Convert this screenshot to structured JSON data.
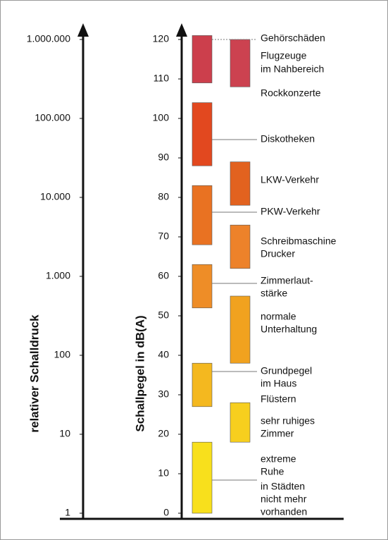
{
  "chart_data": {
    "type": "range-bar",
    "ylabel": "Schallpegel in dB(A)",
    "y2label": "relativer Schalldruck",
    "ylim": [
      0,
      120
    ],
    "yticks": [
      0,
      10,
      20,
      30,
      40,
      50,
      60,
      70,
      80,
      90,
      100,
      110,
      120
    ],
    "y2lim": [
      1,
      1000000
    ],
    "y2scale": "log",
    "y2ticks": [
      {
        "value": 1,
        "label": "1"
      },
      {
        "value": 10,
        "label": "10"
      },
      {
        "value": 100,
        "label": "100"
      },
      {
        "value": 1000,
        "label": "1.000"
      },
      {
        "value": 10000,
        "label": "10.000"
      },
      {
        "value": 100000,
        "label": "100.000"
      },
      {
        "value": 1000000,
        "label": "1.000.000"
      }
    ],
    "bars_left": [
      {
        "low": 109,
        "high": 121,
        "color": "#cc3f4c"
      },
      {
        "low": 88,
        "high": 104,
        "color": "#e2481f"
      },
      {
        "low": 68,
        "high": 83,
        "color": "#e97222"
      },
      {
        "low": 52,
        "high": 63,
        "color": "#ee8d27"
      },
      {
        "low": 27,
        "high": 38,
        "color": "#f4b81f"
      },
      {
        "low": 0,
        "high": 18,
        "color": "#f8e01c"
      }
    ],
    "bars_right": [
      {
        "low": 108,
        "high": 120,
        "color": "#cc4250"
      },
      {
        "low": 78,
        "high": 89,
        "color": "#e2621f"
      },
      {
        "low": 62,
        "high": 73,
        "color": "#ed822a"
      },
      {
        "low": 38,
        "high": 55,
        "color": "#f1a21f"
      },
      {
        "low": 18,
        "high": 28,
        "color": "#f7cf1e"
      }
    ],
    "annotations": [
      "Gehörschäden",
      "Flugzeuge",
      "im Nahbereich",
      "Rockkonzerte",
      "Diskotheken",
      "LKW-Verkehr",
      "PKW-Verkehr",
      "Schreibmaschine",
      "Drucker",
      "Zimmerlaut-",
      "stärke",
      "normale",
      "Unterhaltung",
      "Grundpegel",
      "im Haus",
      "Flüstern",
      "sehr ruhiges",
      "Zimmer",
      "extreme",
      "Ruhe",
      "in Städten",
      "nicht mehr",
      "vorhanden"
    ]
  }
}
